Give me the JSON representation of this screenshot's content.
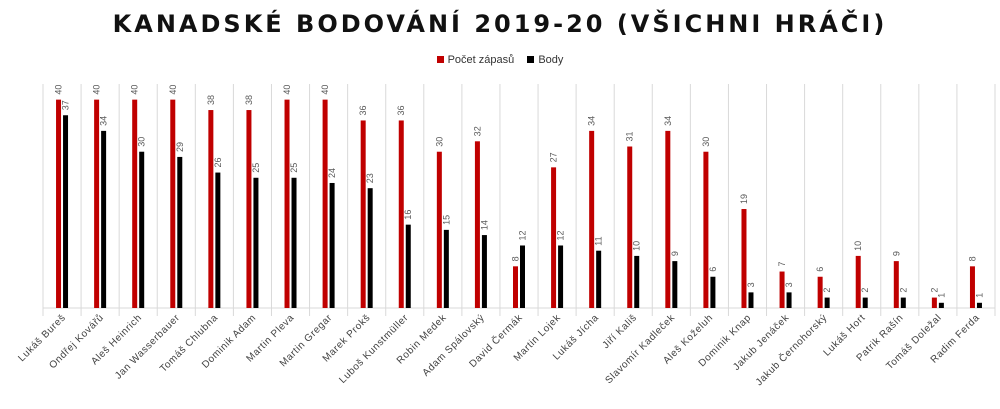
{
  "colors": {
    "series1": "#C00000",
    "series2": "#000000",
    "grid": "#D9D9D9",
    "value_label": "#595959",
    "axis_label": "#404040"
  },
  "chart_data": {
    "type": "bar",
    "title": "KANADSKÉ BODOVÁNÍ 2019-20 (VŠICHNI HRÁČI)",
    "legend_position": "top",
    "grid": false,
    "ylim": [
      0,
      43
    ],
    "categories": [
      "Lukáš Bureš",
      "Ondřej Kovářů",
      "Aleš Heinrich",
      "Jan Wasserbauer",
      "Tomáš Chlubna",
      "Dominik Adam",
      "Martin Pleva",
      "Martin Gregar",
      "Marek Prokš",
      "Luboš Kunstmüller",
      "Robin Medek",
      "Adam Spálovský",
      "David Čermák",
      "Martin Lojek",
      "Lukáš Jícha",
      "Jiří Kališ",
      "Slavomír Kadleček",
      "Aleš Koželuh",
      "Dominik Knap",
      "Jakub Jenáček",
      "Jakub Černohorský",
      "Lukáš Hort",
      "Patrik Rašín",
      "Tomáš Doležal",
      "Radim Ferda"
    ],
    "series": [
      {
        "name": "Počet zápasů",
        "values": [
          40,
          40,
          40,
          40,
          38,
          38,
          40,
          40,
          36,
          36,
          30,
          32,
          8,
          27,
          34,
          31,
          34,
          30,
          19,
          7,
          6,
          10,
          9,
          2,
          8
        ]
      },
      {
        "name": "Body",
        "values": [
          37,
          34,
          30,
          29,
          26,
          25,
          25,
          24,
          23,
          16,
          15,
          14,
          12,
          12,
          11,
          10,
          9,
          6,
          3,
          3,
          2,
          2,
          2,
          1,
          1
        ]
      }
    ]
  }
}
